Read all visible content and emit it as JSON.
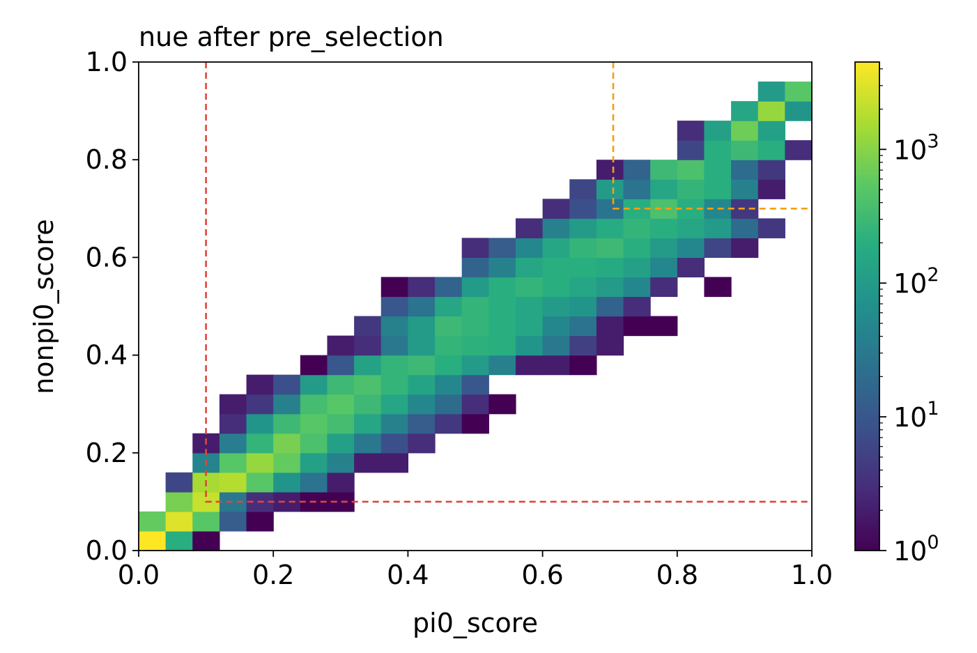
{
  "chart_data": {
    "type": "heatmap",
    "title": "nue after pre_selection",
    "xlabel": "pi0_score",
    "ylabel": "nonpi0_score",
    "xlim": [
      0,
      1
    ],
    "ylim": [
      0,
      1
    ],
    "xticks": [
      "0.0",
      "0.2",
      "0.4",
      "0.6",
      "0.8",
      "1.0"
    ],
    "yticks": [
      "0.0",
      "0.2",
      "0.4",
      "0.6",
      "0.8",
      "1.0"
    ],
    "xtick_values": [
      0,
      0.2,
      0.4,
      0.6,
      0.8,
      1.0
    ],
    "ytick_values": [
      0,
      0.2,
      0.4,
      0.6,
      0.8,
      1.0
    ],
    "bins": 25,
    "bin_width": 0.04,
    "colormap": "viridis",
    "color_scale": "log",
    "colorbar": {
      "min": 1,
      "max": 4500,
      "tick_values": [
        1,
        10,
        100,
        1000
      ],
      "tick_labels": [
        {
          "base": "10",
          "exp": "0"
        },
        {
          "base": "10",
          "exp": "1"
        },
        {
          "base": "10",
          "exp": "2"
        },
        {
          "base": "10",
          "exp": "3"
        }
      ]
    },
    "counts_by_row_comment": "rows from y bin 0 (0.00-0.04) upward; each cell [x_bin_index, count]",
    "cells": [
      [
        0,
        0,
        4500
      ],
      [
        1,
        0,
        200
      ],
      [
        2,
        0,
        1
      ],
      [
        0,
        1,
        600
      ],
      [
        1,
        1,
        3000
      ],
      [
        2,
        1,
        500
      ],
      [
        3,
        1,
        12
      ],
      [
        4,
        1,
        1
      ],
      [
        1,
        2,
        800
      ],
      [
        2,
        2,
        2200
      ],
      [
        3,
        2,
        30
      ],
      [
        4,
        2,
        3
      ],
      [
        5,
        2,
        2
      ],
      [
        6,
        2,
        1
      ],
      [
        7,
        2,
        1
      ],
      [
        1,
        3,
        6
      ],
      [
        2,
        3,
        1500
      ],
      [
        3,
        3,
        1800
      ],
      [
        4,
        3,
        500
      ],
      [
        5,
        3,
        80
      ],
      [
        6,
        3,
        25
      ],
      [
        7,
        3,
        2
      ],
      [
        2,
        4,
        45
      ],
      [
        3,
        4,
        500
      ],
      [
        4,
        4,
        1200
      ],
      [
        5,
        4,
        600
      ],
      [
        6,
        4,
        120
      ],
      [
        7,
        4,
        40
      ],
      [
        8,
        4,
        2
      ],
      [
        9,
        4,
        2
      ],
      [
        2,
        5,
        2
      ],
      [
        3,
        5,
        35
      ],
      [
        4,
        5,
        250
      ],
      [
        5,
        5,
        800
      ],
      [
        6,
        5,
        400
      ],
      [
        7,
        5,
        120
      ],
      [
        8,
        5,
        30
      ],
      [
        9,
        5,
        8
      ],
      [
        10,
        5,
        3
      ],
      [
        3,
        6,
        3
      ],
      [
        4,
        6,
        80
      ],
      [
        5,
        6,
        300
      ],
      [
        6,
        6,
        500
      ],
      [
        7,
        6,
        350
      ],
      [
        8,
        6,
        150
      ],
      [
        9,
        6,
        40
      ],
      [
        10,
        6,
        12
      ],
      [
        11,
        6,
        4
      ],
      [
        12,
        6,
        1
      ],
      [
        3,
        7,
        2
      ],
      [
        4,
        7,
        4
      ],
      [
        5,
        7,
        40
      ],
      [
        6,
        7,
        350
      ],
      [
        7,
        7,
        500
      ],
      [
        8,
        7,
        300
      ],
      [
        9,
        7,
        150
      ],
      [
        10,
        7,
        50
      ],
      [
        11,
        7,
        20
      ],
      [
        12,
        7,
        3
      ],
      [
        13,
        7,
        1
      ],
      [
        4,
        8,
        2
      ],
      [
        5,
        8,
        8
      ],
      [
        6,
        8,
        100
      ],
      [
        7,
        8,
        300
      ],
      [
        8,
        8,
        400
      ],
      [
        9,
        8,
        250
      ],
      [
        10,
        8,
        140
      ],
      [
        11,
        8,
        50
      ],
      [
        12,
        8,
        10
      ],
      [
        6,
        9,
        1
      ],
      [
        7,
        9,
        10
      ],
      [
        8,
        9,
        130
      ],
      [
        9,
        9,
        250
      ],
      [
        10,
        9,
        300
      ],
      [
        11,
        9,
        200
      ],
      [
        12,
        9,
        100
      ],
      [
        13,
        9,
        40
      ],
      [
        14,
        9,
        2
      ],
      [
        15,
        9,
        2
      ],
      [
        16,
        9,
        1
      ],
      [
        7,
        10,
        2
      ],
      [
        8,
        10,
        3
      ],
      [
        9,
        10,
        30
      ],
      [
        10,
        10,
        100
      ],
      [
        11,
        10,
        250
      ],
      [
        12,
        10,
        220
      ],
      [
        13,
        10,
        200
      ],
      [
        14,
        10,
        80
      ],
      [
        15,
        10,
        30
      ],
      [
        16,
        10,
        5
      ],
      [
        17,
        10,
        2
      ],
      [
        8,
        11,
        4
      ],
      [
        9,
        11,
        40
      ],
      [
        10,
        11,
        100
      ],
      [
        11,
        11,
        300
      ],
      [
        12,
        11,
        250
      ],
      [
        13,
        11,
        200
      ],
      [
        14,
        11,
        150
      ],
      [
        15,
        11,
        50
      ],
      [
        16,
        11,
        25
      ],
      [
        17,
        11,
        2
      ],
      [
        18,
        11,
        1
      ],
      [
        19,
        11,
        1
      ],
      [
        9,
        12,
        10
      ],
      [
        10,
        12,
        25
      ],
      [
        11,
        12,
        150
      ],
      [
        12,
        12,
        250
      ],
      [
        13,
        12,
        200
      ],
      [
        14,
        12,
        150
      ],
      [
        15,
        12,
        100
      ],
      [
        16,
        12,
        80
      ],
      [
        17,
        12,
        15
      ],
      [
        18,
        12,
        3
      ],
      [
        9,
        13,
        1
      ],
      [
        10,
        13,
        3
      ],
      [
        11,
        13,
        15
      ],
      [
        12,
        13,
        100
      ],
      [
        13,
        13,
        200
      ],
      [
        14,
        13,
        250
      ],
      [
        15,
        13,
        200
      ],
      [
        16,
        13,
        150
      ],
      [
        17,
        13,
        100
      ],
      [
        18,
        13,
        50
      ],
      [
        19,
        13,
        3
      ],
      [
        21,
        13,
        1
      ],
      [
        12,
        14,
        15
      ],
      [
        13,
        14,
        40
      ],
      [
        14,
        14,
        150
      ],
      [
        15,
        14,
        200
      ],
      [
        16,
        14,
        200
      ],
      [
        17,
        14,
        170
      ],
      [
        18,
        14,
        120
      ],
      [
        19,
        14,
        50
      ],
      [
        20,
        14,
        3
      ],
      [
        12,
        15,
        3
      ],
      [
        13,
        15,
        12
      ],
      [
        14,
        15,
        50
      ],
      [
        15,
        15,
        150
      ],
      [
        16,
        15,
        250
      ],
      [
        17,
        15,
        300
      ],
      [
        18,
        15,
        200
      ],
      [
        19,
        15,
        100
      ],
      [
        20,
        15,
        50
      ],
      [
        21,
        15,
        6
      ],
      [
        22,
        15,
        2
      ],
      [
        14,
        16,
        3
      ],
      [
        15,
        16,
        40
      ],
      [
        16,
        16,
        100
      ],
      [
        17,
        16,
        180
      ],
      [
        18,
        16,
        250
      ],
      [
        19,
        16,
        200
      ],
      [
        20,
        16,
        150
      ],
      [
        21,
        16,
        100
      ],
      [
        22,
        16,
        20
      ],
      [
        23,
        16,
        4
      ],
      [
        15,
        17,
        3
      ],
      [
        16,
        17,
        8
      ],
      [
        17,
        17,
        25
      ],
      [
        18,
        17,
        200
      ],
      [
        19,
        17,
        400
      ],
      [
        20,
        17,
        200
      ],
      [
        21,
        17,
        50
      ],
      [
        22,
        17,
        4
      ],
      [
        16,
        18,
        6
      ],
      [
        17,
        18,
        100
      ],
      [
        18,
        18,
        25
      ],
      [
        19,
        18,
        150
      ],
      [
        20,
        18,
        250
      ],
      [
        21,
        18,
        200
      ],
      [
        22,
        18,
        40
      ],
      [
        23,
        18,
        2
      ],
      [
        17,
        19,
        2
      ],
      [
        18,
        19,
        15
      ],
      [
        19,
        19,
        300
      ],
      [
        20,
        19,
        400
      ],
      [
        21,
        19,
        200
      ],
      [
        22,
        19,
        20
      ],
      [
        23,
        19,
        4
      ],
      [
        20,
        20,
        6
      ],
      [
        21,
        20,
        200
      ],
      [
        22,
        20,
        300
      ],
      [
        23,
        20,
        200
      ],
      [
        24,
        20,
        3
      ],
      [
        20,
        21,
        3
      ],
      [
        21,
        21,
        120
      ],
      [
        22,
        21,
        700
      ],
      [
        23,
        21,
        120
      ],
      [
        22,
        22,
        150
      ],
      [
        23,
        22,
        1200
      ],
      [
        24,
        22,
        80
      ],
      [
        23,
        23,
        100
      ],
      [
        24,
        23,
        500
      ]
    ],
    "cut_lines": [
      {
        "color": "#e0443a",
        "style": "dashed",
        "points": [
          [
            0.1,
            1.0
          ],
          [
            0.1,
            0.1
          ],
          [
            1.0,
            0.1
          ]
        ]
      },
      {
        "color": "#f5a00f",
        "style": "dashed",
        "points": [
          [
            0.705,
            1.0
          ],
          [
            0.705,
            0.7
          ],
          [
            1.0,
            0.7
          ]
        ]
      }
    ]
  }
}
